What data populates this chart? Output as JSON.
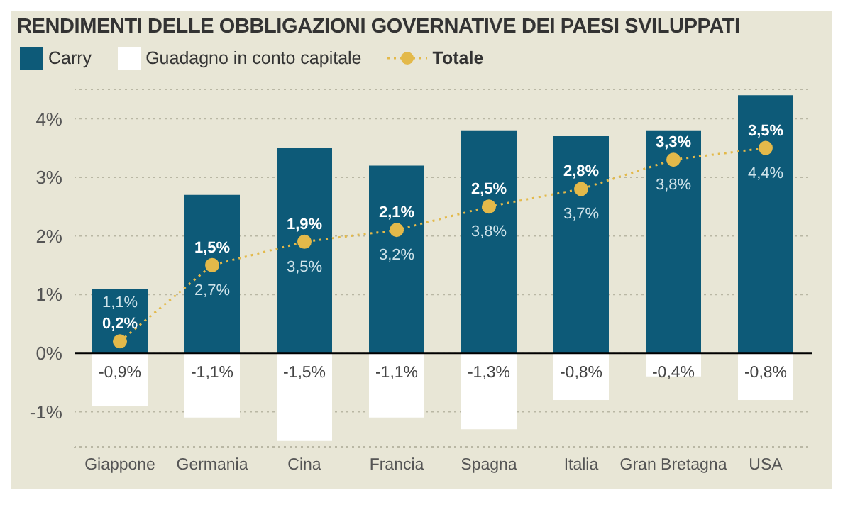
{
  "chart_data": {
    "type": "bar",
    "title": "RENDIMENTI DELLE OBBLIGAZIONI GOVERNATIVE DEI PAESI SVILUPPATI",
    "categories": [
      "Giappone",
      "Germania",
      "Cina",
      "Francia",
      "Spagna",
      "Italia",
      "Gran Bretagna",
      "USA"
    ],
    "stacked": true,
    "series": [
      {
        "name": "Carry",
        "color": "#0d5a78",
        "values": [
          1.1,
          2.7,
          3.5,
          3.2,
          3.8,
          3.7,
          3.8,
          4.4
        ],
        "value_labels": [
          "1,1%",
          "2,7%",
          "3,5%",
          "3,2%",
          "3,8%",
          "3,7%",
          "3,8%",
          "4,4%"
        ]
      },
      {
        "name": "Guadagno in conto capitale",
        "color": "#ffffff",
        "values": [
          -0.9,
          -1.1,
          -1.5,
          -1.1,
          -1.3,
          -0.8,
          -0.4,
          -0.8
        ],
        "value_labels": [
          "-0,9%",
          "-1,1%",
          "-1,5%",
          "-1,1%",
          "-1,3%",
          "-0,8%",
          "-0,4%",
          "-0,8%"
        ]
      },
      {
        "name": "Totale",
        "type": "line",
        "color": "#e3b94a",
        "values": [
          0.2,
          1.5,
          1.9,
          2.1,
          2.5,
          2.8,
          3.3,
          3.5
        ],
        "value_labels": [
          "0,2%",
          "1,5%",
          "1,9%",
          "2,1%",
          "2,5%",
          "2,8%",
          "3,3%",
          "3,5%"
        ]
      }
    ],
    "ylim": [
      -1.6,
      4.5
    ],
    "yticks": [
      {
        "value": -1,
        "label": "-1%"
      },
      {
        "value": 0,
        "label": "0%"
      },
      {
        "value": 1,
        "label": "1%"
      },
      {
        "value": 2,
        "label": "2%"
      },
      {
        "value": 3,
        "label": "3%"
      },
      {
        "value": 4,
        "label": "4%"
      }
    ],
    "grid": "y",
    "legend": "top left",
    "marker": "circle",
    "line_style": "dotted"
  }
}
